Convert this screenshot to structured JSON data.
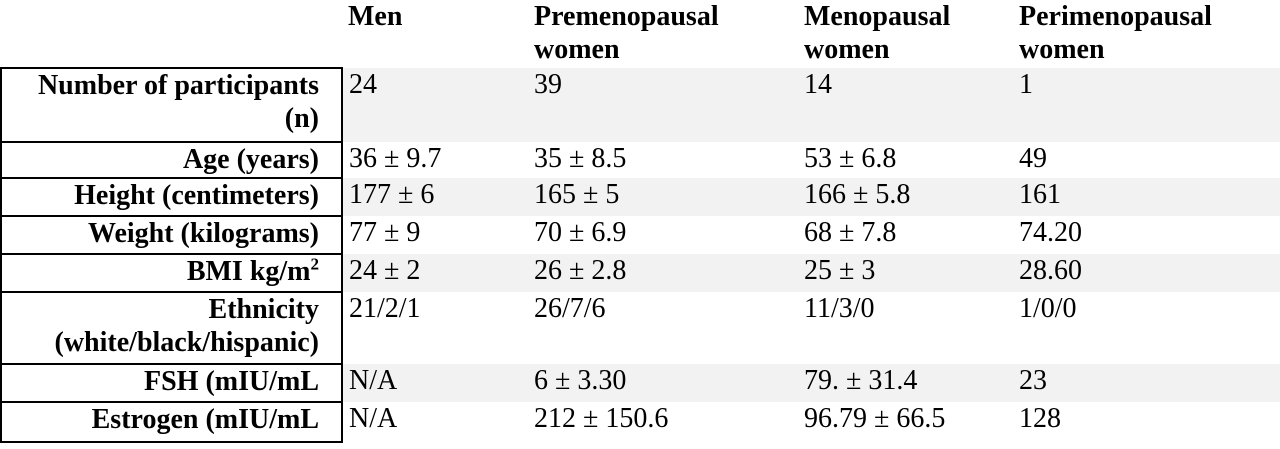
{
  "columns": {
    "men": "Men",
    "premenopausal": "Premenopausal women",
    "menopausal": "Menopausal women",
    "perimenopausal": "Perimenopausal women"
  },
  "rows": [
    {
      "label": "Number of participants (n)",
      "men": "24",
      "premenopausal": "39",
      "menopausal": "14",
      "perimenopausal": "1"
    },
    {
      "label": "Age (years)",
      "men": "36 ± 9.7",
      "premenopausal": "35 ± 8.5",
      "menopausal": "53 ± 6.8",
      "perimenopausal": "49"
    },
    {
      "label": "Height (centimeters)",
      "men": "177 ± 6",
      "premenopausal": "165 ± 5",
      "menopausal": "166 ± 5.8",
      "perimenopausal": "161"
    },
    {
      "label": "Weight (kilograms)",
      "men": "77 ± 9",
      "premenopausal": "70 ± 6.9",
      "menopausal": "68 ± 7.8",
      "perimenopausal": "74.20"
    },
    {
      "label": "BMI kg/m",
      "label_sup": "2",
      "men": "24 ± 2",
      "premenopausal": "26 ± 2.8",
      "menopausal": "25 ± 3",
      "perimenopausal": "28.60"
    },
    {
      "label": "Ethnicity (white/black/hispanic)",
      "men": "21/2/1",
      "premenopausal": "26/7/6",
      "menopausal": "11/3/0",
      "perimenopausal": "1/0/0"
    },
    {
      "label": "FSH (mIU/mL",
      "men": "N/A",
      "premenopausal": "6 ± 3.30",
      "menopausal": "79. ± 31.4",
      "perimenopausal": "23"
    },
    {
      "label": "Estrogen (mIU/mL",
      "men": "N/A",
      "premenopausal": "212 ± 150.6",
      "menopausal": "96.79 ± 66.5",
      "perimenopausal": "128"
    }
  ]
}
